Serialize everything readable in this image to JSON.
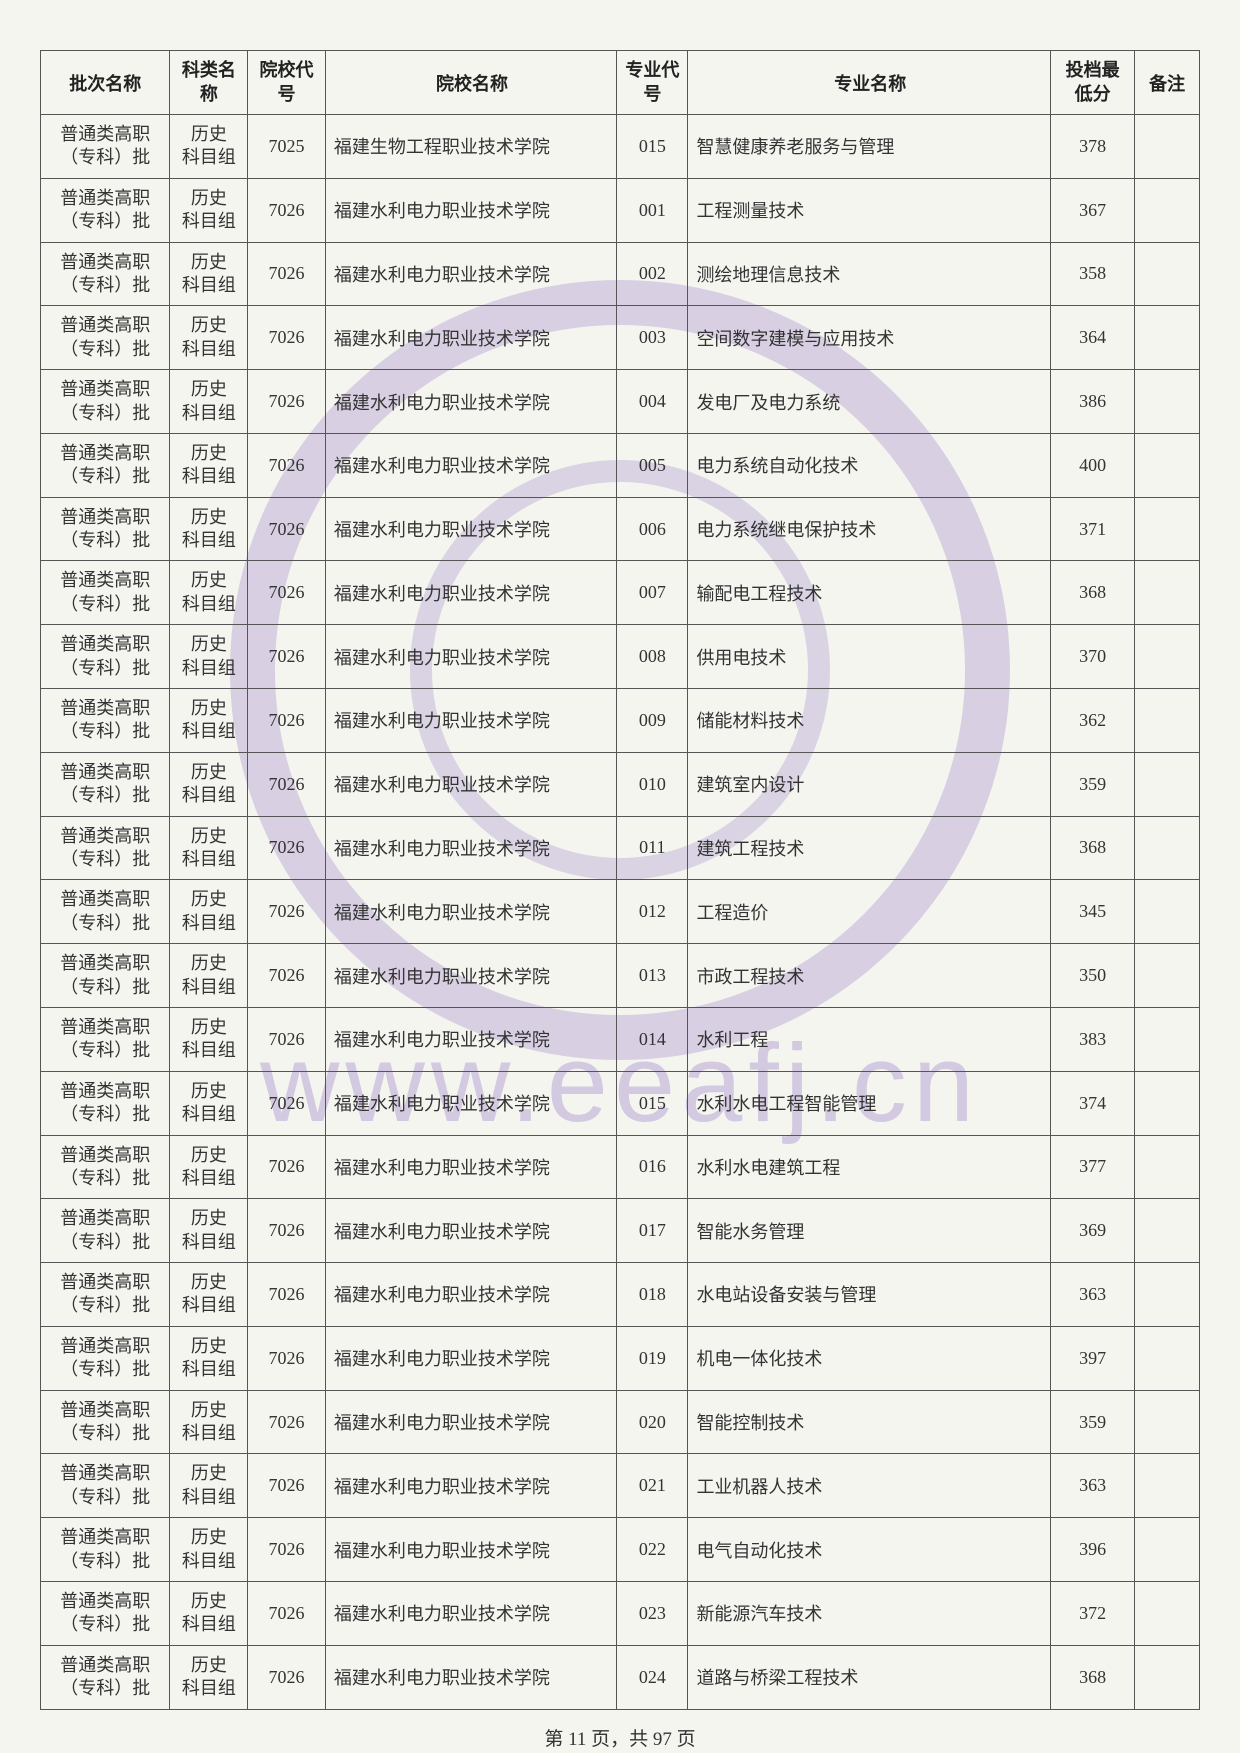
{
  "colors": {
    "page_bg": "#f5f5f0",
    "border": "#555555",
    "text": "#333333",
    "watermark": "rgba(140,110,190,0.3)"
  },
  "watermark_url": "www.eeafj.cn",
  "table": {
    "headers": {
      "batch": "批次名称",
      "subject": "科类名称",
      "school_code": "院校代号",
      "school_name": "院校名称",
      "major_code": "专业代号",
      "major_name": "专业名称",
      "score": "投档最低分",
      "note": "备注"
    },
    "common": {
      "batch_line1": "普通类高职",
      "batch_line2": "（专科）批",
      "subject_line1": "历史",
      "subject_line2": "科目组"
    },
    "rows": [
      {
        "school_code": "7025",
        "school_name": "福建生物工程职业技术学院",
        "major_code": "015",
        "major_name": "智慧健康养老服务与管理",
        "score": "378",
        "note": ""
      },
      {
        "school_code": "7026",
        "school_name": "福建水利电力职业技术学院",
        "major_code": "001",
        "major_name": "工程测量技术",
        "score": "367",
        "note": ""
      },
      {
        "school_code": "7026",
        "school_name": "福建水利电力职业技术学院",
        "major_code": "002",
        "major_name": "测绘地理信息技术",
        "score": "358",
        "note": ""
      },
      {
        "school_code": "7026",
        "school_name": "福建水利电力职业技术学院",
        "major_code": "003",
        "major_name": "空间数字建模与应用技术",
        "score": "364",
        "note": ""
      },
      {
        "school_code": "7026",
        "school_name": "福建水利电力职业技术学院",
        "major_code": "004",
        "major_name": "发电厂及电力系统",
        "score": "386",
        "note": ""
      },
      {
        "school_code": "7026",
        "school_name": "福建水利电力职业技术学院",
        "major_code": "005",
        "major_name": "电力系统自动化技术",
        "score": "400",
        "note": ""
      },
      {
        "school_code": "7026",
        "school_name": "福建水利电力职业技术学院",
        "major_code": "006",
        "major_name": "电力系统继电保护技术",
        "score": "371",
        "note": ""
      },
      {
        "school_code": "7026",
        "school_name": "福建水利电力职业技术学院",
        "major_code": "007",
        "major_name": "输配电工程技术",
        "score": "368",
        "note": ""
      },
      {
        "school_code": "7026",
        "school_name": "福建水利电力职业技术学院",
        "major_code": "008",
        "major_name": "供用电技术",
        "score": "370",
        "note": ""
      },
      {
        "school_code": "7026",
        "school_name": "福建水利电力职业技术学院",
        "major_code": "009",
        "major_name": "储能材料技术",
        "score": "362",
        "note": ""
      },
      {
        "school_code": "7026",
        "school_name": "福建水利电力职业技术学院",
        "major_code": "010",
        "major_name": "建筑室内设计",
        "score": "359",
        "note": ""
      },
      {
        "school_code": "7026",
        "school_name": "福建水利电力职业技术学院",
        "major_code": "011",
        "major_name": "建筑工程技术",
        "score": "368",
        "note": ""
      },
      {
        "school_code": "7026",
        "school_name": "福建水利电力职业技术学院",
        "major_code": "012",
        "major_name": "工程造价",
        "score": "345",
        "note": ""
      },
      {
        "school_code": "7026",
        "school_name": "福建水利电力职业技术学院",
        "major_code": "013",
        "major_name": "市政工程技术",
        "score": "350",
        "note": ""
      },
      {
        "school_code": "7026",
        "school_name": "福建水利电力职业技术学院",
        "major_code": "014",
        "major_name": "水利工程",
        "score": "383",
        "note": ""
      },
      {
        "school_code": "7026",
        "school_name": "福建水利电力职业技术学院",
        "major_code": "015",
        "major_name": "水利水电工程智能管理",
        "score": "374",
        "note": ""
      },
      {
        "school_code": "7026",
        "school_name": "福建水利电力职业技术学院",
        "major_code": "016",
        "major_name": "水利水电建筑工程",
        "score": "377",
        "note": ""
      },
      {
        "school_code": "7026",
        "school_name": "福建水利电力职业技术学院",
        "major_code": "017",
        "major_name": "智能水务管理",
        "score": "369",
        "note": ""
      },
      {
        "school_code": "7026",
        "school_name": "福建水利电力职业技术学院",
        "major_code": "018",
        "major_name": "水电站设备安装与管理",
        "score": "363",
        "note": ""
      },
      {
        "school_code": "7026",
        "school_name": "福建水利电力职业技术学院",
        "major_code": "019",
        "major_name": "机电一体化技术",
        "score": "397",
        "note": ""
      },
      {
        "school_code": "7026",
        "school_name": "福建水利电力职业技术学院",
        "major_code": "020",
        "major_name": "智能控制技术",
        "score": "359",
        "note": ""
      },
      {
        "school_code": "7026",
        "school_name": "福建水利电力职业技术学院",
        "major_code": "021",
        "major_name": "工业机器人技术",
        "score": "363",
        "note": ""
      },
      {
        "school_code": "7026",
        "school_name": "福建水利电力职业技术学院",
        "major_code": "022",
        "major_name": "电气自动化技术",
        "score": "396",
        "note": ""
      },
      {
        "school_code": "7026",
        "school_name": "福建水利电力职业技术学院",
        "major_code": "023",
        "major_name": "新能源汽车技术",
        "score": "372",
        "note": ""
      },
      {
        "school_code": "7026",
        "school_name": "福建水利电力职业技术学院",
        "major_code": "024",
        "major_name": "道路与桥梁工程技术",
        "score": "368",
        "note": ""
      }
    ]
  },
  "pager": {
    "prefix": "第 ",
    "current": "11",
    "mid": " 页，共 ",
    "total": "97",
    "suffix": " 页"
  }
}
